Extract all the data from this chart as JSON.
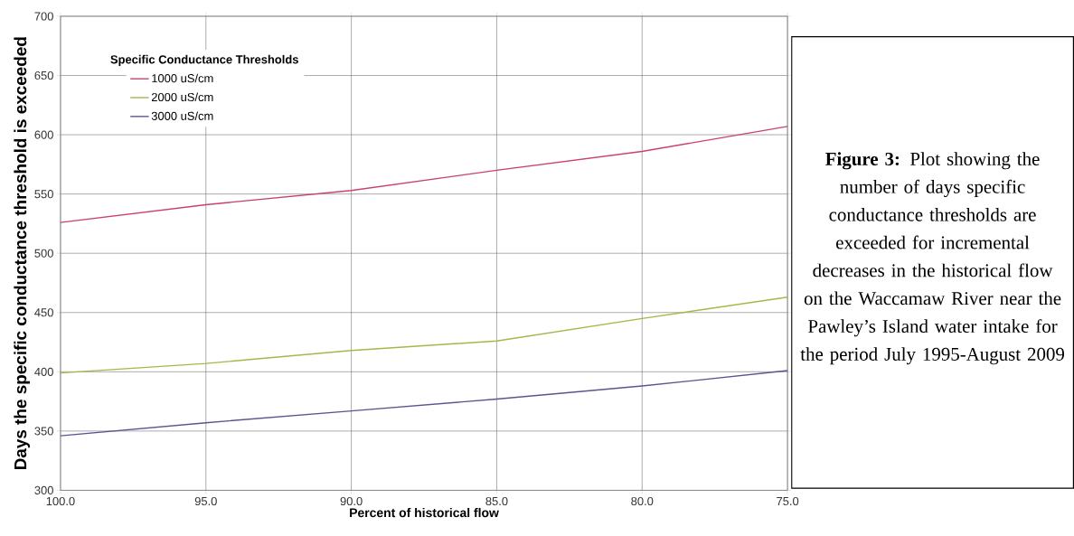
{
  "chart_data": {
    "type": "line",
    "xlabel": "Percent of historical flow",
    "ylabel": "Days the specific conductance threshold is exceeded",
    "legend_title": "Specific Conductance Thresholds",
    "x": [
      100,
      95,
      90,
      85,
      80,
      75
    ],
    "series": [
      {
        "name": "1000 uS/cm",
        "color": "#c8426a",
        "values": [
          526,
          541,
          553,
          570,
          586,
          607
        ]
      },
      {
        "name": "2000 uS/cm",
        "color": "#a4b84a",
        "values": [
          399,
          407,
          418,
          426,
          445,
          463
        ]
      },
      {
        "name": "3000 uS/cm",
        "color": "#5a5590",
        "values": [
          346,
          357,
          367,
          377,
          388,
          401
        ]
      }
    ],
    "xlim": [
      100,
      75
    ],
    "xticks": [
      {
        "value": 100,
        "label": "100.0"
      },
      {
        "value": 95,
        "label": "95.0"
      },
      {
        "value": 90,
        "label": "90.0"
      },
      {
        "value": 85,
        "label": "85.0"
      },
      {
        "value": 80,
        "label": "80.0"
      },
      {
        "value": 75,
        "label": "75.0"
      }
    ],
    "ylim": [
      300,
      700
    ],
    "yticks": [
      300,
      350,
      400,
      450,
      500,
      550,
      600,
      650,
      700
    ],
    "grid": true,
    "legend": "top left",
    "marker": "none",
    "line_style": "solid",
    "annotations": [
      "**Figure 3:** Plot showing the number of days specific conductance thresholds are exceeded for incremental decreases in the historical flow on the Waccamaw River near the Pawley’s Island water intake for the period July 1995-August 2009"
    ]
  }
}
